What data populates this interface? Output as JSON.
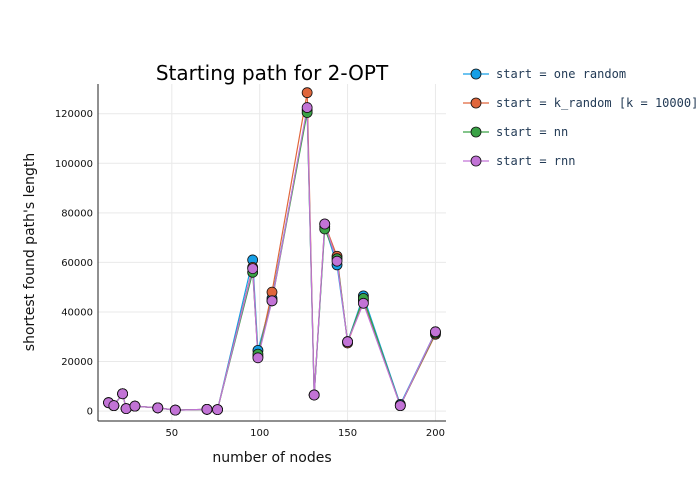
{
  "chart_data": {
    "type": "line",
    "title": "Starting path for 2-OPT",
    "xlabel": "number of nodes",
    "ylabel": "shortest found path's length",
    "xlim": [
      8,
      206
    ],
    "ylim": [
      -4000,
      132000
    ],
    "x_ticks": [
      50,
      100,
      150,
      200
    ],
    "y_ticks": [
      0,
      20000,
      40000,
      60000,
      80000,
      100000,
      120000
    ],
    "grid": true,
    "legend_position": "right",
    "x": [
      14,
      17,
      22,
      24,
      29,
      42,
      52,
      70,
      76,
      96,
      99,
      107,
      127,
      131,
      137,
      144,
      150,
      159,
      180,
      200
    ],
    "series": [
      {
        "name": "start = one random",
        "color": "#169fe6",
        "values": [
          3400,
          2200,
          7000,
          1000,
          2000,
          1300,
          400,
          700,
          600,
          61000,
          24500,
          45500,
          121500,
          6500,
          74500,
          59000,
          28000,
          46500,
          2700,
          32000
        ]
      },
      {
        "name": "start = k_random [k = 10000]",
        "color": "#e0663c",
        "values": [
          3400,
          2200,
          7000,
          1000,
          2000,
          1300,
          400,
          700,
          600,
          58000,
          22000,
          48000,
          128500,
          6500,
          75500,
          62500,
          27500,
          44500,
          2200,
          31000
        ]
      },
      {
        "name": "start = nn",
        "color": "#3aa246",
        "values": [
          3400,
          2200,
          7000,
          1000,
          2000,
          1300,
          400,
          700,
          600,
          56000,
          23000,
          44500,
          120500,
          6500,
          73500,
          61500,
          28000,
          45500,
          2200,
          31500
        ]
      },
      {
        "name": "start = rnn",
        "color": "#c273d6",
        "values": [
          3400,
          2200,
          7000,
          1000,
          2000,
          1300,
          400,
          700,
          600,
          57500,
          21500,
          44500,
          122500,
          6500,
          75500,
          60500,
          28000,
          43500,
          2200,
          32000
        ]
      }
    ]
  }
}
